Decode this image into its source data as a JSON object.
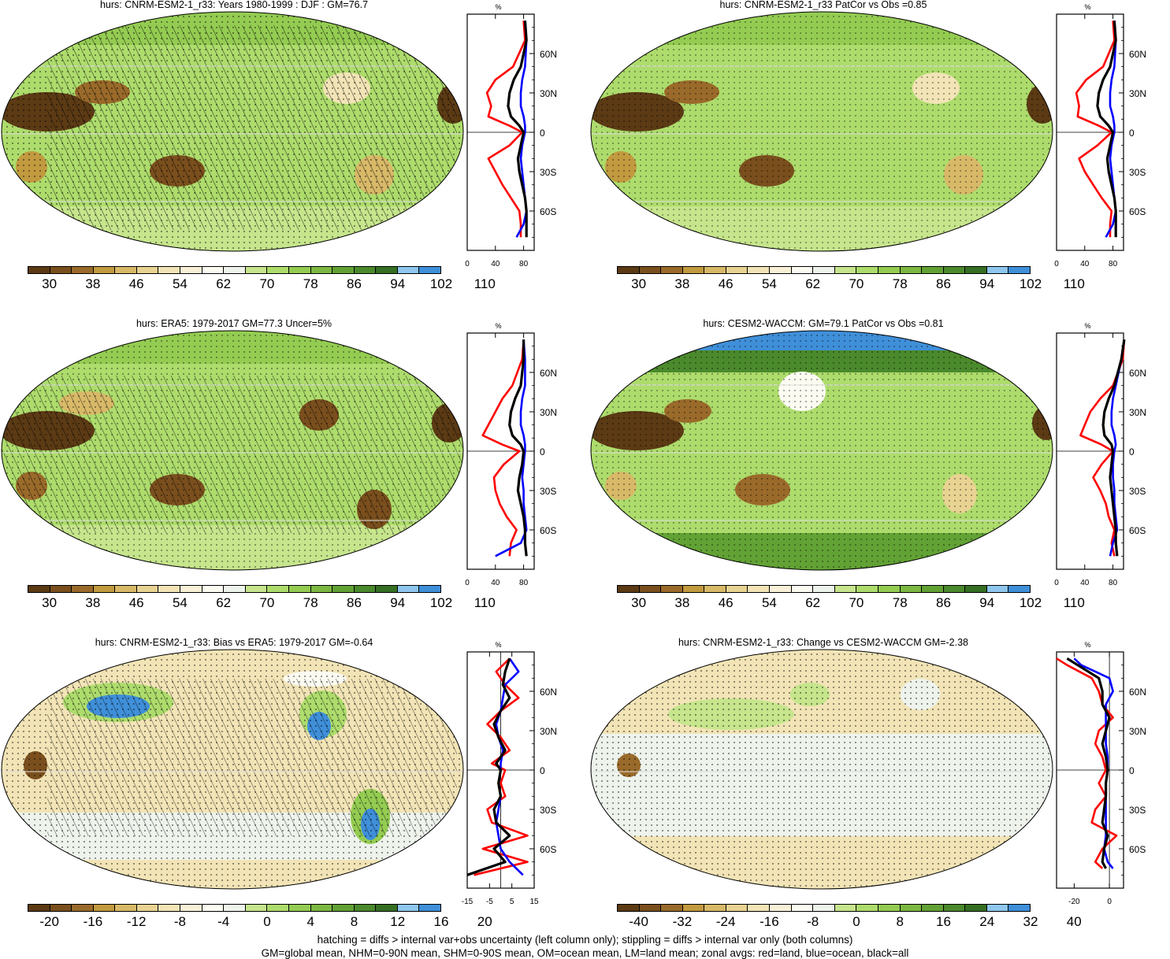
{
  "panels": [
    {
      "title": "hurs: CNRM-ESM2-1_r33: Years 1980-1999 : DJF : GM=76.7"
    },
    {
      "title": "hurs: CNRM-ESM2-1_r33 PatCor vs Obs =0.85"
    },
    {
      "title": "hurs: ERA5: 1979-2017 GM=77.3 Uncer=5%"
    },
    {
      "title": "hurs: CESM2-WACCM: GM=79.1 PatCor vs Obs =0.81"
    },
    {
      "title": "hurs: CNRM-ESM2-1_r33: Bias vs ERA5: 1979-2017 GM=-0.64"
    },
    {
      "title": "hurs: CNRM-ESM2-1_r33: Change vs CESM2-WACCM GM=-2.38"
    }
  ],
  "colorbars": {
    "abs_colors": [
      "#5b3a14",
      "#7a4f1d",
      "#9a6a2a",
      "#c29a3f",
      "#d8b968",
      "#e8d392",
      "#f2e4b6",
      "#f8f0d7",
      "#fbfbf2",
      "#eef3ec",
      "#c6e58c",
      "#addc6c",
      "#94cc52",
      "#7cb843",
      "#62a235",
      "#4b8a2c",
      "#356f23",
      "#8fc7ee",
      "#3f8fd9"
    ],
    "abs_labels": [
      "30",
      "38",
      "46",
      "54",
      "62",
      "70",
      "78",
      "86",
      "94",
      "102",
      "110"
    ],
    "bias_labels": [
      "-20",
      "-16",
      "-12",
      "-8",
      "-4",
      "0",
      "4",
      "8",
      "12",
      "16",
      "20"
    ],
    "change_labels": [
      "-40",
      "-32",
      "-24",
      "-16",
      "-8",
      "0",
      "8",
      "16",
      "24",
      "32",
      "40"
    ]
  },
  "zonal": {
    "unit": "%",
    "lat_labels": [
      "60N",
      "30N",
      "0",
      "30S",
      "60S"
    ],
    "xlabels_abs": [
      "0",
      "40",
      "80"
    ],
    "xlabels_bias": [
      "-15",
      "-5",
      "5",
      "15"
    ],
    "xlabels_change": [
      "-20",
      "0"
    ],
    "colors": {
      "land": "#ff0000",
      "ocean": "#0000ff",
      "all": "#000000"
    }
  },
  "chart_data": [
    {
      "type": "area",
      "title": "hurs: CNRM-ESM2-1_r33: Years 1980-1999 : DJF : GM=76.7",
      "xlabel": "",
      "ylabel": "",
      "series": [
        {
          "name": "land",
          "lat": [
            85,
            70,
            50,
            40,
            30,
            20,
            12,
            5,
            0,
            -10,
            -20,
            -30,
            -40,
            -50,
            -60,
            -70,
            -80
          ],
          "values": [
            80,
            82,
            65,
            40,
            28,
            34,
            30,
            60,
            78,
            60,
            30,
            40,
            50,
            62,
            74,
            76,
            76
          ]
        },
        {
          "name": "ocean",
          "lat": [
            85,
            70,
            50,
            40,
            30,
            20,
            12,
            5,
            0,
            -10,
            -20,
            -30,
            -40,
            -50,
            -60,
            -70,
            -80
          ],
          "values": [
            82,
            84,
            82,
            78,
            76,
            76,
            80,
            82,
            82,
            78,
            76,
            78,
            80,
            82,
            84,
            80,
            70
          ]
        },
        {
          "name": "all",
          "lat": [
            85,
            70,
            50,
            40,
            30,
            20,
            12,
            5,
            0,
            -10,
            -20,
            -30,
            -40,
            -50,
            -60,
            -70,
            -80
          ],
          "values": [
            82,
            84,
            76,
            66,
            60,
            58,
            62,
            74,
            80,
            76,
            72,
            74,
            78,
            82,
            84,
            84,
            84
          ]
        }
      ]
    },
    {
      "type": "area",
      "title": "hurs: CNRM-ESM2-1_r33 PatCor vs Obs =0.85",
      "xlabel": "",
      "ylabel": "",
      "series": [
        {
          "name": "land",
          "lat": [
            85,
            70,
            50,
            40,
            30,
            20,
            12,
            5,
            0,
            -10,
            -20,
            -30,
            -40,
            -50,
            -60,
            -70,
            -80
          ],
          "values": [
            80,
            82,
            66,
            42,
            28,
            32,
            30,
            60,
            78,
            58,
            32,
            40,
            52,
            64,
            78,
            76,
            76
          ]
        },
        {
          "name": "ocean",
          "lat": [
            85,
            70,
            50,
            40,
            30,
            20,
            12,
            5,
            0,
            -10,
            -20,
            -30,
            -40,
            -50,
            -60,
            -70,
            -80
          ],
          "values": [
            82,
            84,
            82,
            78,
            76,
            76,
            80,
            82,
            82,
            78,
            76,
            78,
            80,
            82,
            84,
            80,
            70
          ]
        },
        {
          "name": "all",
          "lat": [
            85,
            70,
            50,
            40,
            30,
            20,
            12,
            5,
            0,
            -10,
            -20,
            -30,
            -40,
            -50,
            -60,
            -70,
            -80
          ],
          "values": [
            82,
            84,
            76,
            66,
            60,
            58,
            62,
            74,
            80,
            76,
            72,
            74,
            78,
            82,
            84,
            84,
            84
          ]
        }
      ]
    },
    {
      "type": "area",
      "title": "hurs: ERA5: 1979-2017 GM=77.3 Uncer=5%",
      "xlabel": "",
      "ylabel": "",
      "series": [
        {
          "name": "land",
          "lat": [
            85,
            70,
            50,
            40,
            30,
            20,
            12,
            5,
            0,
            -10,
            -20,
            -30,
            -40,
            -50,
            -60,
            -70,
            -80
          ],
          "values": [
            80,
            78,
            64,
            50,
            40,
            30,
            22,
            50,
            74,
            52,
            38,
            40,
            46,
            56,
            70,
            62,
            60
          ]
        },
        {
          "name": "ocean",
          "lat": [
            85,
            70,
            50,
            40,
            30,
            20,
            12,
            5,
            0,
            -10,
            -20,
            -30,
            -40,
            -50,
            -60,
            -70,
            -80
          ],
          "values": [
            80,
            82,
            82,
            78,
            76,
            76,
            80,
            82,
            82,
            80,
            78,
            80,
            80,
            82,
            84,
            76,
            40
          ]
        },
        {
          "name": "all",
          "lat": [
            85,
            70,
            50,
            40,
            30,
            20,
            12,
            5,
            0,
            -10,
            -20,
            -30,
            -40,
            -50,
            -60,
            -70,
            -80
          ],
          "values": [
            80,
            80,
            76,
            68,
            62,
            60,
            64,
            76,
            80,
            78,
            74,
            72,
            76,
            80,
            82,
            82,
            84
          ]
        }
      ]
    },
    {
      "type": "area",
      "title": "hurs: CESM2-WACCM: GM=79.1 PatCor vs Obs =0.81",
      "xlabel": "",
      "ylabel": "",
      "series": [
        {
          "name": "land",
          "lat": [
            85,
            70,
            50,
            40,
            30,
            20,
            12,
            5,
            0,
            -10,
            -20,
            -30,
            -40,
            -50,
            -60,
            -70,
            -80
          ],
          "values": [
            96,
            94,
            80,
            62,
            48,
            40,
            34,
            64,
            80,
            64,
            52,
            62,
            70,
            74,
            82,
            78,
            82
          ]
        },
        {
          "name": "ocean",
          "lat": [
            85,
            70,
            50,
            40,
            30,
            20,
            12,
            5,
            0,
            -10,
            -20,
            -30,
            -40,
            -50,
            -60,
            -70,
            -80
          ],
          "values": [
            96,
            92,
            84,
            80,
            78,
            78,
            82,
            84,
            82,
            80,
            80,
            82,
            82,
            84,
            86,
            80,
            76
          ]
        },
        {
          "name": "all",
          "lat": [
            85,
            70,
            50,
            40,
            30,
            20,
            12,
            5,
            0,
            -10,
            -20,
            -30,
            -40,
            -50,
            -60,
            -70,
            -80
          ],
          "values": [
            96,
            92,
            82,
            74,
            68,
            66,
            68,
            78,
            80,
            78,
            76,
            78,
            80,
            82,
            84,
            84,
            86
          ]
        }
      ]
    },
    {
      "type": "area",
      "title": "hurs: CNRM-ESM2-1_r33: Bias vs ERA5: 1979-2017 GM=-0.64",
      "xlabel": "",
      "ylabel": "",
      "series": [
        {
          "name": "land",
          "lat": [
            85,
            75,
            65,
            55,
            45,
            35,
            25,
            15,
            5,
            0,
            -10,
            -20,
            -30,
            -40,
            -50,
            -60,
            -70,
            -80
          ],
          "values": [
            4,
            -2,
            2,
            8,
            0,
            -6,
            0,
            4,
            -4,
            2,
            0,
            2,
            -6,
            -4,
            12,
            -8,
            12,
            -12
          ]
        },
        {
          "name": "ocean",
          "lat": [
            85,
            75,
            65,
            55,
            45,
            35,
            25,
            15,
            5,
            0,
            -10,
            -20,
            -30,
            -40,
            -50,
            -60,
            -70,
            -80
          ],
          "values": [
            4,
            8,
            2,
            1,
            0,
            -2,
            -1,
            1,
            0,
            0,
            -1,
            0,
            -1,
            -2,
            -1,
            0,
            4,
            10
          ]
        },
        {
          "name": "all",
          "lat": [
            85,
            75,
            65,
            55,
            45,
            35,
            25,
            15,
            5,
            0,
            -10,
            -20,
            -30,
            -40,
            -50,
            -60,
            -70,
            -80
          ],
          "values": [
            4,
            2,
            1,
            4,
            0,
            -3,
            -1,
            2,
            -2,
            0,
            -1,
            0,
            -3,
            -2,
            4,
            -3,
            2,
            -15
          ]
        }
      ]
    },
    {
      "type": "area",
      "title": "hurs: CNRM-ESM2-1_r33: Change vs CESM2-WACCM GM=-2.38",
      "xlabel": "",
      "ylabel": "",
      "series": [
        {
          "name": "land",
          "lat": [
            85,
            80,
            70,
            60,
            50,
            40,
            30,
            20,
            10,
            0,
            -10,
            -20,
            -30,
            -40,
            -50,
            -60,
            -70,
            -75
          ],
          "values": [
            -30,
            -24,
            -10,
            -6,
            -4,
            2,
            -6,
            -8,
            -4,
            -2,
            -6,
            -2,
            -8,
            -10,
            4,
            -4,
            -8,
            -4
          ]
        },
        {
          "name": "ocean",
          "lat": [
            85,
            80,
            70,
            60,
            50,
            40,
            30,
            20,
            10,
            0,
            -10,
            -20,
            -30,
            -40,
            -50,
            -60,
            -70,
            -75
          ],
          "values": [
            -20,
            -16,
            0,
            2,
            -2,
            -2,
            -2,
            -2,
            -1,
            -1,
            -2,
            -2,
            -2,
            -2,
            -2,
            -3,
            -1,
            2
          ]
        },
        {
          "name": "all",
          "lat": [
            85,
            80,
            70,
            60,
            50,
            40,
            30,
            20,
            10,
            0,
            -10,
            -20,
            -30,
            -40,
            -50,
            -60,
            -70,
            -75
          ],
          "values": [
            -24,
            -18,
            -6,
            -4,
            -4,
            0,
            -2,
            -4,
            -2,
            -1,
            -2,
            -2,
            -3,
            -4,
            -1,
            -3,
            -4,
            -2
          ]
        }
      ]
    }
  ],
  "footer": {
    "line1": "hatching = diffs > internal var+obs uncertainty (left column only); stippling = diffs > internal var only (both columns)",
    "line2": "GM=global mean, NHM=0-90N mean, SHM=0-90S mean, OM=ocean mean, LM=land mean; zonal avgs: red=land, blue=ocean, black=all"
  }
}
